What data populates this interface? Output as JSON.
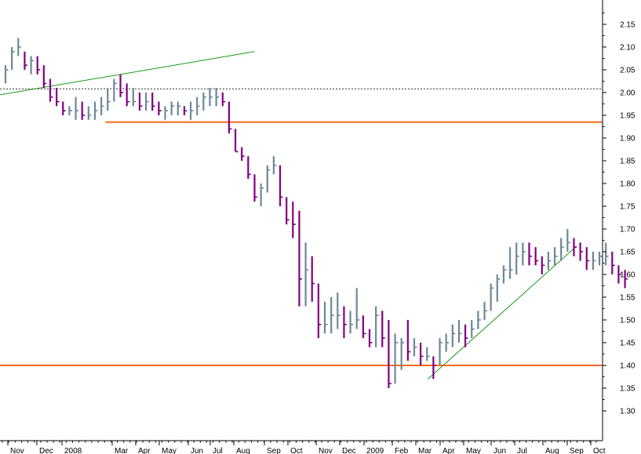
{
  "chart_data": {
    "type": "ohlc",
    "title": "",
    "xlabel": "",
    "ylabel": "",
    "ylim": [
      1.29,
      2.19
    ],
    "y_ticks": [
      "2.15",
      "2.10",
      "2.05",
      "2.00",
      "1.95",
      "1.90",
      "1.85",
      "1.80",
      "1.75",
      "1.70",
      "1.65",
      "1.60",
      "1.55",
      "1.50",
      "1.45",
      "1.40",
      "1.35",
      "1.30"
    ],
    "x_ticks": [
      "Nov",
      "Dec",
      "2008",
      "Mar",
      "Apr",
      "May",
      "Jun",
      "Jul",
      "Aug",
      "Sep",
      "Oct",
      "Nov",
      "Dec",
      "2009",
      "Feb",
      "Mar",
      "Apr",
      "May",
      "Jun",
      "Jul",
      "Aug",
      "Sep",
      "Oct"
    ],
    "grid": false,
    "colors": {
      "up": "#6e8896",
      "down": "#800080",
      "support": "#ff6a1a",
      "trend": "#1a9a1a",
      "ref": "#333333"
    },
    "series": [
      {
        "values": [
          {
            "h": 2.06,
            "l": 2.02,
            "c": 2.05
          },
          {
            "h": 2.1,
            "l": 2.05,
            "c": 2.09
          },
          {
            "h": 2.12,
            "l": 2.08,
            "c": 2.1
          },
          {
            "h": 2.09,
            "l": 2.05,
            "c": 2.06
          },
          {
            "h": 2.08,
            "l": 2.04,
            "c": 2.07
          },
          {
            "h": 2.08,
            "l": 2.04,
            "c": 2.05
          },
          {
            "h": 2.06,
            "l": 2.01,
            "c": 2.02
          },
          {
            "h": 2.03,
            "l": 1.98,
            "c": 1.99
          },
          {
            "h": 2.01,
            "l": 1.97,
            "c": 1.98
          },
          {
            "h": 1.98,
            "l": 1.95,
            "c": 1.96
          },
          {
            "h": 1.97,
            "l": 1.95,
            "c": 1.96
          },
          {
            "h": 1.99,
            "l": 1.94,
            "c": 1.96
          },
          {
            "h": 1.98,
            "l": 1.94,
            "c": 1.95
          },
          {
            "h": 1.97,
            "l": 1.94,
            "c": 1.95
          },
          {
            "h": 1.98,
            "l": 1.94,
            "c": 1.96
          },
          {
            "h": 1.99,
            "l": 1.95,
            "c": 1.97
          },
          {
            "h": 2.01,
            "l": 1.96,
            "c": 1.98
          },
          {
            "h": 2.03,
            "l": 1.98,
            "c": 2.02
          },
          {
            "h": 2.04,
            "l": 1.99,
            "c": 2.0
          },
          {
            "h": 2.02,
            "l": 1.97,
            "c": 1.98
          },
          {
            "h": 2.01,
            "l": 1.97,
            "c": 1.98
          },
          {
            "h": 2.0,
            "l": 1.96,
            "c": 1.97
          },
          {
            "h": 2.0,
            "l": 1.96,
            "c": 1.98
          },
          {
            "h": 2.0,
            "l": 1.96,
            "c": 1.97
          },
          {
            "h": 1.98,
            "l": 1.95,
            "c": 1.96
          },
          {
            "h": 1.97,
            "l": 1.94,
            "c": 1.96
          },
          {
            "h": 1.98,
            "l": 1.95,
            "c": 1.97
          },
          {
            "h": 1.98,
            "l": 1.95,
            "c": 1.97
          },
          {
            "h": 1.97,
            "l": 1.95,
            "c": 1.96
          },
          {
            "h": 1.98,
            "l": 1.94,
            "c": 1.96
          },
          {
            "h": 1.99,
            "l": 1.95,
            "c": 1.97
          },
          {
            "h": 2.0,
            "l": 1.96,
            "c": 1.99
          },
          {
            "h": 2.01,
            "l": 1.97,
            "c": 1.99
          },
          {
            "h": 2.01,
            "l": 1.97,
            "c": 1.99
          },
          {
            "h": 2.0,
            "l": 1.97,
            "c": 1.98
          },
          {
            "h": 1.98,
            "l": 1.91,
            "c": 1.92
          },
          {
            "h": 1.92,
            "l": 1.87,
            "c": 1.87
          },
          {
            "h": 1.88,
            "l": 1.85,
            "c": 1.86
          },
          {
            "h": 1.86,
            "l": 1.81,
            "c": 1.82
          },
          {
            "h": 1.82,
            "l": 1.76,
            "c": 1.77
          },
          {
            "h": 1.8,
            "l": 1.75,
            "c": 1.79
          },
          {
            "h": 1.84,
            "l": 1.78,
            "c": 1.83
          },
          {
            "h": 1.86,
            "l": 1.82,
            "c": 1.84
          },
          {
            "h": 1.84,
            "l": 1.75,
            "c": 1.77
          },
          {
            "h": 1.77,
            "l": 1.71,
            "c": 1.72
          },
          {
            "h": 1.76,
            "l": 1.68,
            "c": 1.71
          },
          {
            "h": 1.74,
            "l": 1.53,
            "c": 1.59
          },
          {
            "h": 1.67,
            "l": 1.53,
            "c": 1.61
          },
          {
            "h": 1.64,
            "l": 1.54,
            "c": 1.58
          },
          {
            "h": 1.58,
            "l": 1.46,
            "c": 1.49
          },
          {
            "h": 1.54,
            "l": 1.47,
            "c": 1.49
          },
          {
            "h": 1.55,
            "l": 1.47,
            "c": 1.51
          },
          {
            "h": 1.56,
            "l": 1.48,
            "c": 1.51
          },
          {
            "h": 1.53,
            "l": 1.46,
            "c": 1.49
          },
          {
            "h": 1.52,
            "l": 1.47,
            "c": 1.49
          },
          {
            "h": 1.57,
            "l": 1.48,
            "c": 1.5
          },
          {
            "h": 1.51,
            "l": 1.46,
            "c": 1.47
          },
          {
            "h": 1.48,
            "l": 1.44,
            "c": 1.45
          },
          {
            "h": 1.53,
            "l": 1.44,
            "c": 1.51
          },
          {
            "h": 1.52,
            "l": 1.44,
            "c": 1.46
          },
          {
            "h": 1.5,
            "l": 1.35,
            "c": 1.36
          },
          {
            "h": 1.47,
            "l": 1.36,
            "c": 1.45
          },
          {
            "h": 1.46,
            "l": 1.39,
            "c": 1.45
          },
          {
            "h": 1.5,
            "l": 1.41,
            "c": 1.43
          },
          {
            "h": 1.46,
            "l": 1.42,
            "c": 1.44
          },
          {
            "h": 1.45,
            "l": 1.4,
            "c": 1.42
          },
          {
            "h": 1.44,
            "l": 1.41,
            "c": 1.42
          },
          {
            "h": 1.42,
            "l": 1.37,
            "c": 1.4
          },
          {
            "h": 1.46,
            "l": 1.4,
            "c": 1.45
          },
          {
            "h": 1.47,
            "l": 1.43,
            "c": 1.45
          },
          {
            "h": 1.49,
            "l": 1.44,
            "c": 1.47
          },
          {
            "h": 1.5,
            "l": 1.45,
            "c": 1.47
          },
          {
            "h": 1.49,
            "l": 1.44,
            "c": 1.46
          },
          {
            "h": 1.5,
            "l": 1.46,
            "c": 1.48
          },
          {
            "h": 1.52,
            "l": 1.48,
            "c": 1.5
          },
          {
            "h": 1.54,
            "l": 1.5,
            "c": 1.52
          },
          {
            "h": 1.58,
            "l": 1.52,
            "c": 1.57
          },
          {
            "h": 1.6,
            "l": 1.54,
            "c": 1.59
          },
          {
            "h": 1.62,
            "l": 1.58,
            "c": 1.61
          },
          {
            "h": 1.66,
            "l": 1.59,
            "c": 1.61
          },
          {
            "h": 1.67,
            "l": 1.6,
            "c": 1.64
          },
          {
            "h": 1.67,
            "l": 1.62,
            "c": 1.65
          },
          {
            "h": 1.67,
            "l": 1.62,
            "c": 1.64
          },
          {
            "h": 1.66,
            "l": 1.62,
            "c": 1.63
          },
          {
            "h": 1.64,
            "l": 1.6,
            "c": 1.62
          },
          {
            "h": 1.65,
            "l": 1.61,
            "c": 1.63
          },
          {
            "h": 1.66,
            "l": 1.62,
            "c": 1.64
          },
          {
            "h": 1.68,
            "l": 1.63,
            "c": 1.66
          },
          {
            "h": 1.7,
            "l": 1.65,
            "c": 1.67
          },
          {
            "h": 1.68,
            "l": 1.64,
            "c": 1.66
          },
          {
            "h": 1.67,
            "l": 1.63,
            "c": 1.65
          },
          {
            "h": 1.66,
            "l": 1.61,
            "c": 1.63
          },
          {
            "h": 1.65,
            "l": 1.61,
            "c": 1.63
          },
          {
            "h": 1.65,
            "l": 1.62,
            "c": 1.64
          },
          {
            "h": 1.67,
            "l": 1.62,
            "c": 1.64
          },
          {
            "h": 1.65,
            "l": 1.6,
            "c": 1.62
          },
          {
            "h": 1.62,
            "l": 1.58,
            "c": 1.6
          },
          {
            "h": 1.61,
            "l": 1.57,
            "c": 1.59
          }
        ]
      }
    ],
    "annotations": [
      {
        "type": "hline",
        "y": 1.935,
        "style": "support",
        "from_bar": 16
      },
      {
        "type": "hline",
        "y": 1.4,
        "style": "support",
        "from_bar": 0
      },
      {
        "type": "hline",
        "y": 2.008,
        "style": "ref-dotted",
        "from_bar": 0
      },
      {
        "type": "trendline",
        "from": {
          "bar": 0,
          "y": 1.995
        },
        "to": {
          "bar": 39,
          "y": 2.09
        }
      },
      {
        "type": "trendline",
        "from": {
          "bar": 67,
          "y": 1.37
        },
        "to": {
          "bar": 89,
          "y": 1.657
        }
      }
    ]
  }
}
